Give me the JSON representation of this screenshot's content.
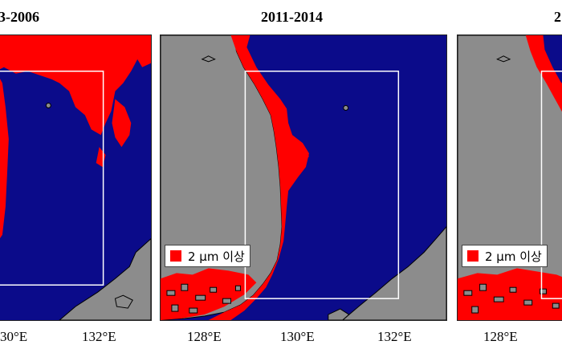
{
  "colors": {
    "sea": "#0b0b8a",
    "land": "#8c8c8c",
    "above_threshold": "#ff0000",
    "study_box": "#ffffff"
  },
  "panels": [
    {
      "title": "3-2006",
      "ticks": [
        "30°E",
        "132°E"
      ]
    },
    {
      "title": "2011-2014",
      "ticks": [
        "128°E",
        "130°E",
        "132°E"
      ],
      "legend": {
        "label": "2 μm 이상"
      }
    },
    {
      "title": "2",
      "ticks": [
        "128°E"
      ],
      "legend": {
        "label": "2 μm 이상"
      }
    }
  ]
}
